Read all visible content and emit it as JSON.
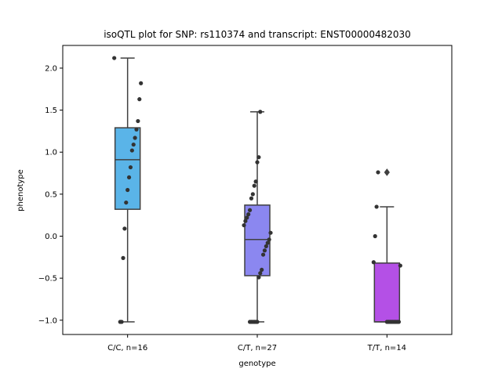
{
  "chart_data": {
    "type": "box",
    "title": "isoQTL plot for SNP: rs110374 and transcript: ENST00000482030",
    "xlabel": "genotype",
    "ylabel": "phenotype",
    "ylim": [
      -1.17,
      2.27
    ],
    "yticks": [
      -1.0,
      -0.5,
      0.0,
      0.5,
      1.0,
      1.5,
      2.0
    ],
    "ytick_labels": [
      "−1.0",
      "−0.5",
      "0.0",
      "0.5",
      "1.0",
      "1.5",
      "2.0"
    ],
    "grid": false,
    "categories": [
      "C/C, n=16",
      "C/T, n=27",
      "T/T, n=14"
    ],
    "colors": [
      "#5ab4e8",
      "#8b87f0",
      "#b450e6"
    ],
    "boxes": [
      {
        "q1": 0.32,
        "median": 0.91,
        "q3": 1.29,
        "whisker_low": -1.02,
        "whisker_high": 2.12,
        "outliers": []
      },
      {
        "q1": -0.47,
        "median": -0.04,
        "q3": 0.37,
        "whisker_low": -1.02,
        "whisker_high": 1.48,
        "outliers": []
      },
      {
        "q1": -1.02,
        "median": -1.02,
        "q3": -0.32,
        "whisker_low": -1.02,
        "whisker_high": 0.35,
        "outliers": [
          0.76
        ]
      }
    ],
    "points": [
      [
        2.12,
        1.82,
        1.63,
        1.37,
        1.27,
        1.17,
        1.09,
        1.02,
        0.82,
        0.7,
        0.55,
        0.4,
        0.09,
        -0.26,
        -1.02,
        -1.02
      ],
      [
        1.48,
        0.94,
        0.88,
        0.65,
        0.6,
        0.5,
        0.45,
        0.31,
        0.26,
        0.22,
        0.18,
        0.13,
        0.04,
        -0.04,
        -0.08,
        -0.12,
        -0.17,
        -0.22,
        -0.4,
        -0.44,
        -0.49,
        -1.02,
        -1.02,
        -1.02,
        -1.02,
        -1.02,
        -1.02
      ],
      [
        0.76,
        0.35,
        0.0,
        -0.31,
        -0.35,
        -1.02,
        -1.02,
        -1.02,
        -1.02,
        -1.02,
        -1.02,
        -1.02,
        -1.02,
        -1.02
      ]
    ]
  }
}
